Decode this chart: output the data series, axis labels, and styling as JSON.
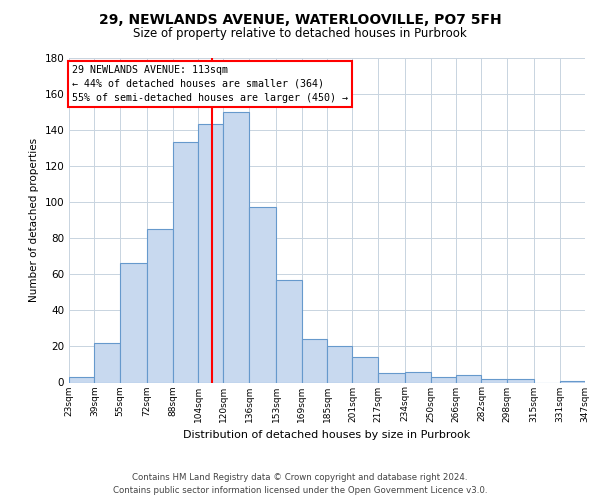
{
  "title": "29, NEWLANDS AVENUE, WATERLOOVILLE, PO7 5FH",
  "subtitle": "Size of property relative to detached houses in Purbrook",
  "xlabel": "Distribution of detached houses by size in Purbrook",
  "ylabel": "Number of detached properties",
  "bar_color": "#c8d9ef",
  "bar_edge_color": "#6699cc",
  "bin_edges": [
    23,
    39,
    55,
    72,
    88,
    104,
    120,
    136,
    153,
    169,
    185,
    201,
    217,
    234,
    250,
    266,
    282,
    298,
    315,
    331,
    347
  ],
  "bar_heights": [
    3,
    22,
    66,
    85,
    133,
    143,
    150,
    97,
    57,
    24,
    20,
    14,
    5,
    6,
    3,
    4,
    2,
    2,
    0,
    1
  ],
  "tick_labels": [
    "23sqm",
    "39sqm",
    "55sqm",
    "72sqm",
    "88sqm",
    "104sqm",
    "120sqm",
    "136sqm",
    "153sqm",
    "169sqm",
    "185sqm",
    "201sqm",
    "217sqm",
    "234sqm",
    "250sqm",
    "266sqm",
    "282sqm",
    "298sqm",
    "315sqm",
    "331sqm",
    "347sqm"
  ],
  "property_line_x": 113,
  "annotation_title": "29 NEWLANDS AVENUE: 113sqm",
  "annotation_line1": "← 44% of detached houses are smaller (364)",
  "annotation_line2": "55% of semi-detached houses are larger (450) →",
  "ylim": [
    0,
    180
  ],
  "yticks": [
    0,
    20,
    40,
    60,
    80,
    100,
    120,
    140,
    160,
    180
  ],
  "footer_line1": "Contains HM Land Registry data © Crown copyright and database right 2024.",
  "footer_line2": "Contains public sector information licensed under the Open Government Licence v3.0.",
  "bg_color": "#ffffff",
  "grid_color": "#c8d4e0"
}
